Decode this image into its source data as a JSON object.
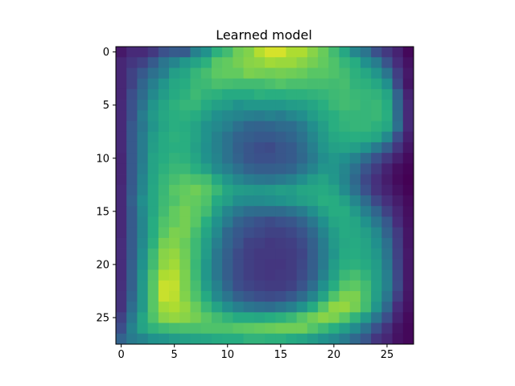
{
  "chart_data": {
    "type": "heatmap",
    "title": "Learned model",
    "xlabel": "",
    "ylabel": "",
    "colormap": "viridis",
    "rows": 28,
    "cols": 28,
    "xlim": [
      -0.5,
      27.5
    ],
    "ylim": [
      27.5,
      -0.5
    ],
    "x_ticks": [
      0,
      5,
      10,
      15,
      20,
      25
    ],
    "y_ticks": [
      0,
      5,
      10,
      15,
      20,
      25
    ],
    "x_tick_labels": [
      "0",
      "5",
      "10",
      "15",
      "20",
      "25"
    ],
    "y_tick_labels": [
      "0",
      "5",
      "10",
      "15",
      "20",
      "25"
    ],
    "grid": false,
    "values": [
      [
        0.07,
        0.12,
        0.12,
        0.17,
        0.25,
        0.29,
        0.29,
        0.44,
        0.51,
        0.64,
        0.69,
        0.78,
        0.81,
        0.89,
        0.94,
        0.94,
        0.88,
        0.88,
        0.82,
        0.77,
        0.69,
        0.6,
        0.46,
        0.39,
        0.25,
        0.17,
        0.1,
        0.02
      ],
      [
        0.11,
        0.16,
        0.2,
        0.29,
        0.39,
        0.45,
        0.53,
        0.58,
        0.64,
        0.74,
        0.76,
        0.79,
        0.82,
        0.83,
        0.86,
        0.85,
        0.85,
        0.82,
        0.79,
        0.76,
        0.72,
        0.66,
        0.62,
        0.5,
        0.42,
        0.26,
        0.13,
        0.05
      ],
      [
        0.11,
        0.2,
        0.28,
        0.37,
        0.43,
        0.56,
        0.59,
        0.66,
        0.7,
        0.75,
        0.76,
        0.76,
        0.8,
        0.79,
        0.78,
        0.79,
        0.78,
        0.77,
        0.74,
        0.74,
        0.72,
        0.69,
        0.64,
        0.6,
        0.52,
        0.39,
        0.19,
        0.07
      ],
      [
        0.11,
        0.2,
        0.33,
        0.43,
        0.52,
        0.6,
        0.62,
        0.67,
        0.68,
        0.71,
        0.7,
        0.69,
        0.69,
        0.69,
        0.71,
        0.73,
        0.71,
        0.71,
        0.7,
        0.7,
        0.69,
        0.7,
        0.65,
        0.64,
        0.6,
        0.5,
        0.22,
        0.06
      ],
      [
        0.11,
        0.24,
        0.35,
        0.47,
        0.55,
        0.61,
        0.64,
        0.68,
        0.65,
        0.64,
        0.61,
        0.61,
        0.61,
        0.64,
        0.63,
        0.63,
        0.64,
        0.64,
        0.65,
        0.66,
        0.68,
        0.69,
        0.67,
        0.66,
        0.65,
        0.59,
        0.32,
        0.1
      ],
      [
        0.12,
        0.25,
        0.38,
        0.52,
        0.59,
        0.64,
        0.66,
        0.66,
        0.61,
        0.57,
        0.55,
        0.51,
        0.53,
        0.53,
        0.53,
        0.53,
        0.55,
        0.56,
        0.59,
        0.63,
        0.67,
        0.69,
        0.68,
        0.66,
        0.67,
        0.62,
        0.34,
        0.12
      ],
      [
        0.12,
        0.25,
        0.42,
        0.54,
        0.6,
        0.63,
        0.64,
        0.62,
        0.56,
        0.5,
        0.47,
        0.45,
        0.43,
        0.42,
        0.44,
        0.42,
        0.46,
        0.49,
        0.55,
        0.6,
        0.63,
        0.66,
        0.66,
        0.66,
        0.67,
        0.63,
        0.35,
        0.12
      ],
      [
        0.12,
        0.28,
        0.4,
        0.52,
        0.59,
        0.63,
        0.62,
        0.58,
        0.51,
        0.47,
        0.43,
        0.37,
        0.33,
        0.32,
        0.33,
        0.35,
        0.36,
        0.41,
        0.49,
        0.56,
        0.63,
        0.65,
        0.66,
        0.66,
        0.64,
        0.6,
        0.37,
        0.12
      ],
      [
        0.12,
        0.28,
        0.42,
        0.55,
        0.61,
        0.64,
        0.63,
        0.58,
        0.51,
        0.44,
        0.38,
        0.32,
        0.3,
        0.28,
        0.28,
        0.3,
        0.33,
        0.38,
        0.46,
        0.54,
        0.6,
        0.62,
        0.63,
        0.62,
        0.59,
        0.47,
        0.24,
        0.09
      ],
      [
        0.12,
        0.28,
        0.42,
        0.56,
        0.61,
        0.63,
        0.63,
        0.57,
        0.5,
        0.44,
        0.38,
        0.31,
        0.27,
        0.24,
        0.23,
        0.27,
        0.29,
        0.35,
        0.43,
        0.52,
        0.57,
        0.58,
        0.56,
        0.51,
        0.41,
        0.3,
        0.16,
        0.06
      ],
      [
        0.11,
        0.28,
        0.42,
        0.58,
        0.62,
        0.65,
        0.64,
        0.59,
        0.51,
        0.45,
        0.38,
        0.32,
        0.27,
        0.25,
        0.25,
        0.27,
        0.29,
        0.34,
        0.41,
        0.49,
        0.53,
        0.5,
        0.44,
        0.35,
        0.25,
        0.17,
        0.09,
        0.03
      ],
      [
        0.11,
        0.28,
        0.43,
        0.58,
        0.64,
        0.67,
        0.67,
        0.63,
        0.57,
        0.48,
        0.43,
        0.37,
        0.32,
        0.3,
        0.3,
        0.31,
        0.33,
        0.39,
        0.45,
        0.52,
        0.52,
        0.46,
        0.37,
        0.26,
        0.18,
        0.1,
        0.04,
        0.01
      ],
      [
        0.11,
        0.28,
        0.45,
        0.59,
        0.66,
        0.7,
        0.73,
        0.71,
        0.69,
        0.6,
        0.52,
        0.46,
        0.42,
        0.4,
        0.39,
        0.41,
        0.44,
        0.49,
        0.55,
        0.58,
        0.53,
        0.45,
        0.34,
        0.22,
        0.14,
        0.08,
        0.03,
        0.0
      ],
      [
        0.12,
        0.29,
        0.46,
        0.6,
        0.67,
        0.74,
        0.76,
        0.78,
        0.74,
        0.67,
        0.59,
        0.55,
        0.54,
        0.53,
        0.54,
        0.56,
        0.55,
        0.59,
        0.6,
        0.61,
        0.58,
        0.48,
        0.37,
        0.25,
        0.15,
        0.1,
        0.05,
        0.01
      ],
      [
        0.12,
        0.31,
        0.49,
        0.6,
        0.68,
        0.72,
        0.77,
        0.76,
        0.72,
        0.61,
        0.56,
        0.49,
        0.48,
        0.48,
        0.49,
        0.51,
        0.53,
        0.56,
        0.58,
        0.63,
        0.62,
        0.57,
        0.46,
        0.35,
        0.22,
        0.14,
        0.08,
        0.03
      ],
      [
        0.12,
        0.29,
        0.47,
        0.6,
        0.69,
        0.76,
        0.79,
        0.75,
        0.69,
        0.56,
        0.46,
        0.4,
        0.36,
        0.35,
        0.35,
        0.35,
        0.38,
        0.42,
        0.49,
        0.57,
        0.62,
        0.62,
        0.54,
        0.43,
        0.33,
        0.2,
        0.11,
        0.04
      ],
      [
        0.12,
        0.29,
        0.46,
        0.62,
        0.72,
        0.76,
        0.79,
        0.74,
        0.63,
        0.51,
        0.41,
        0.32,
        0.28,
        0.25,
        0.23,
        0.25,
        0.27,
        0.32,
        0.4,
        0.5,
        0.59,
        0.61,
        0.59,
        0.51,
        0.4,
        0.28,
        0.13,
        0.05
      ],
      [
        0.12,
        0.29,
        0.46,
        0.62,
        0.74,
        0.8,
        0.79,
        0.7,
        0.59,
        0.47,
        0.34,
        0.28,
        0.24,
        0.22,
        0.2,
        0.2,
        0.22,
        0.26,
        0.34,
        0.45,
        0.55,
        0.61,
        0.6,
        0.56,
        0.47,
        0.32,
        0.18,
        0.06
      ],
      [
        0.13,
        0.29,
        0.47,
        0.64,
        0.79,
        0.81,
        0.77,
        0.68,
        0.56,
        0.43,
        0.33,
        0.26,
        0.2,
        0.19,
        0.17,
        0.18,
        0.19,
        0.23,
        0.31,
        0.42,
        0.54,
        0.6,
        0.61,
        0.58,
        0.5,
        0.37,
        0.19,
        0.06
      ],
      [
        0.13,
        0.29,
        0.49,
        0.68,
        0.82,
        0.84,
        0.78,
        0.68,
        0.55,
        0.4,
        0.31,
        0.23,
        0.19,
        0.17,
        0.17,
        0.17,
        0.18,
        0.21,
        0.3,
        0.41,
        0.52,
        0.61,
        0.62,
        0.59,
        0.53,
        0.39,
        0.2,
        0.07
      ],
      [
        0.13,
        0.3,
        0.51,
        0.69,
        0.83,
        0.86,
        0.79,
        0.67,
        0.53,
        0.4,
        0.3,
        0.23,
        0.19,
        0.17,
        0.16,
        0.16,
        0.18,
        0.22,
        0.3,
        0.41,
        0.55,
        0.63,
        0.64,
        0.61,
        0.55,
        0.41,
        0.21,
        0.07
      ],
      [
        0.13,
        0.31,
        0.53,
        0.73,
        0.88,
        0.89,
        0.8,
        0.68,
        0.53,
        0.4,
        0.3,
        0.23,
        0.19,
        0.17,
        0.16,
        0.17,
        0.18,
        0.23,
        0.31,
        0.44,
        0.57,
        0.67,
        0.7,
        0.65,
        0.56,
        0.43,
        0.22,
        0.07
      ],
      [
        0.14,
        0.31,
        0.54,
        0.74,
        0.92,
        0.91,
        0.8,
        0.7,
        0.55,
        0.44,
        0.33,
        0.24,
        0.21,
        0.19,
        0.18,
        0.18,
        0.2,
        0.26,
        0.36,
        0.5,
        0.62,
        0.73,
        0.75,
        0.69,
        0.57,
        0.44,
        0.23,
        0.07
      ],
      [
        0.15,
        0.33,
        0.54,
        0.74,
        0.92,
        0.9,
        0.81,
        0.72,
        0.61,
        0.47,
        0.39,
        0.31,
        0.27,
        0.24,
        0.23,
        0.24,
        0.28,
        0.35,
        0.45,
        0.58,
        0.72,
        0.8,
        0.8,
        0.7,
        0.56,
        0.4,
        0.19,
        0.06
      ],
      [
        0.15,
        0.36,
        0.54,
        0.74,
        0.86,
        0.88,
        0.84,
        0.77,
        0.67,
        0.58,
        0.49,
        0.43,
        0.39,
        0.37,
        0.36,
        0.39,
        0.43,
        0.51,
        0.61,
        0.73,
        0.83,
        0.84,
        0.79,
        0.69,
        0.52,
        0.34,
        0.13,
        0.05
      ],
      [
        0.2,
        0.4,
        0.59,
        0.72,
        0.82,
        0.84,
        0.82,
        0.79,
        0.74,
        0.69,
        0.65,
        0.61,
        0.61,
        0.6,
        0.62,
        0.64,
        0.67,
        0.73,
        0.78,
        0.82,
        0.8,
        0.74,
        0.65,
        0.54,
        0.39,
        0.24,
        0.1,
        0.03
      ],
      [
        0.24,
        0.44,
        0.58,
        0.65,
        0.68,
        0.7,
        0.71,
        0.71,
        0.72,
        0.72,
        0.72,
        0.74,
        0.75,
        0.76,
        0.77,
        0.78,
        0.78,
        0.78,
        0.73,
        0.68,
        0.63,
        0.56,
        0.48,
        0.38,
        0.25,
        0.15,
        0.06,
        0.02
      ],
      [
        0.32,
        0.41,
        0.45,
        0.51,
        0.52,
        0.55,
        0.57,
        0.58,
        0.59,
        0.61,
        0.62,
        0.62,
        0.65,
        0.65,
        0.64,
        0.64,
        0.61,
        0.59,
        0.55,
        0.51,
        0.47,
        0.42,
        0.34,
        0.27,
        0.16,
        0.11,
        0.05,
        0.02
      ]
    ]
  }
}
